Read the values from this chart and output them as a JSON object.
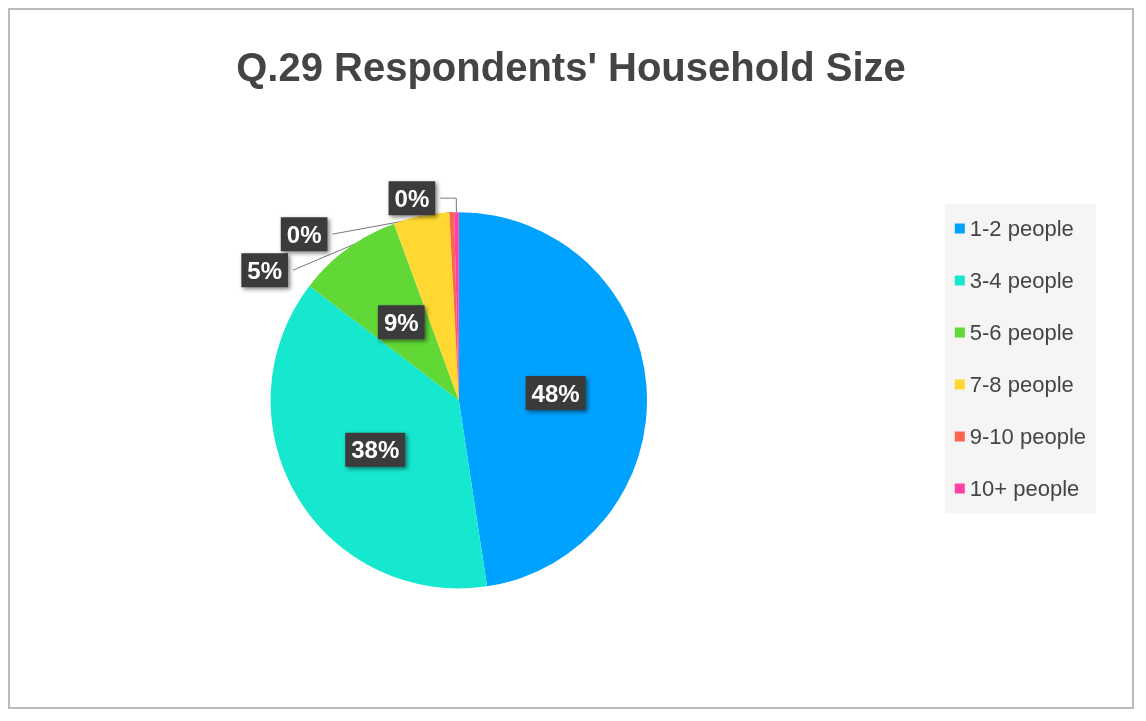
{
  "chart_data": {
    "type": "pie",
    "title": "Q.29 Respondents' Household Size",
    "categories": [
      "1-2 people",
      "3-4 people",
      "5-6 people",
      "7-8 people",
      "9-10 people",
      "10+ people"
    ],
    "values": [
      47.6,
      37.8,
      9.0,
      4.8,
      0.4,
      0.4
    ],
    "value_labels": [
      "48%",
      "38%",
      "9%",
      "5%",
      "0%",
      "0%"
    ],
    "colors": [
      "#00a2ff",
      "#16e7cf",
      "#61d836",
      "#ffd932",
      "#ff644e",
      "#ff42a1"
    ],
    "legend": "right"
  }
}
